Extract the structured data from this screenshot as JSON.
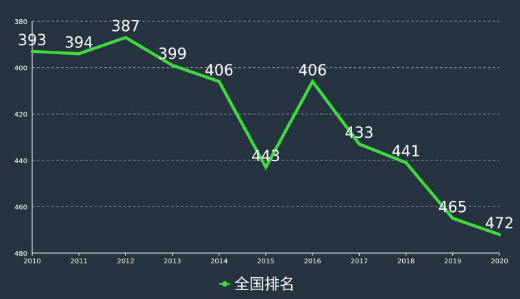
{
  "chart_data": {
    "type": "line",
    "title": "",
    "xlabel": "",
    "ylabel": "",
    "x": [
      "2010",
      "2011",
      "2012",
      "2013",
      "2014",
      "2015",
      "2016",
      "2017",
      "2018",
      "2019",
      "2020"
    ],
    "series": [
      {
        "name": "全国排名",
        "values": [
          393,
          394,
          387,
          399,
          406,
          443,
          406,
          433,
          441,
          465,
          472
        ],
        "color": "#3ddc3a"
      }
    ],
    "y_inverted": true,
    "ylim": [
      380,
      480
    ],
    "yticks": [
      380,
      400,
      420,
      440,
      460,
      480
    ],
    "grid": true,
    "grid_style": "dashed",
    "legend_position": "bottom-center",
    "colors": {
      "background": "#263340",
      "text": "#ffffff",
      "axis": "#ffffff",
      "grid": "#8a95a0"
    }
  }
}
